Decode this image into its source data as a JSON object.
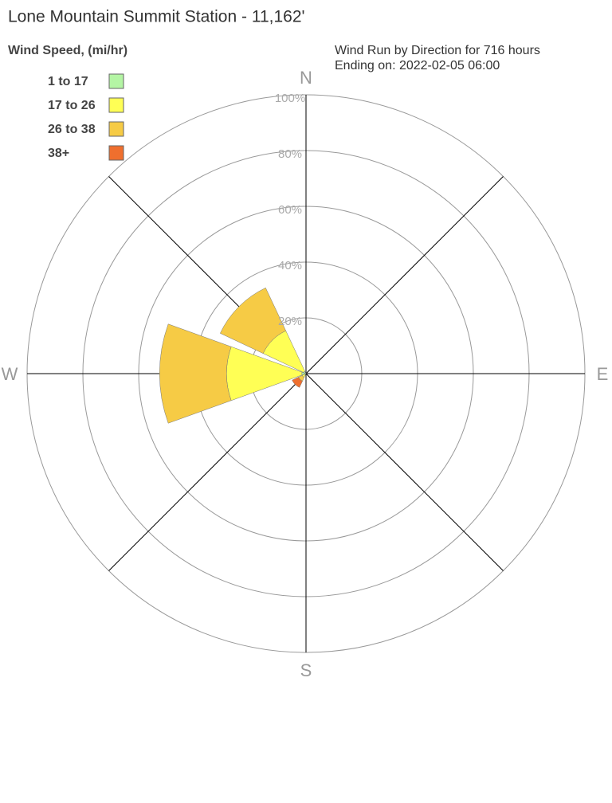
{
  "chart_data": {
    "type": "windrose",
    "title": "Lone Mountain Summit Station - 11,162'",
    "legend_title": "Wind Speed, (mi/hr)",
    "subtitle": [
      "Wind Run by Direction for 716 hours",
      "Ending on: 2022-02-05 06:00"
    ],
    "categories": [
      "N",
      null,
      "E",
      null,
      "S",
      null,
      "W",
      null
    ],
    "series": [
      {
        "name": "1 to 17",
        "color": "#b4f5a4",
        "values": [
          0.3,
          0,
          0,
          0,
          0,
          0.5,
          1.5,
          1
        ]
      },
      {
        "name": "17 to 26",
        "color": "#ffff55",
        "values": [
          0,
          0,
          0,
          0,
          0,
          1,
          27,
          16
        ]
      },
      {
        "name": "26 to 38",
        "color": "#f6cb45",
        "values": [
          0,
          0,
          0,
          0,
          0,
          1.5,
          24,
          17
        ]
      },
      {
        "name": "38+",
        "color": "#ef6f2e",
        "values": [
          0,
          0,
          0,
          0,
          0,
          2.5,
          0,
          0
        ]
      }
    ],
    "rlim": [
      0,
      100
    ],
    "rticks": [
      {
        "value": 20,
        "label": "20%"
      },
      {
        "value": 40,
        "label": "40%"
      },
      {
        "value": 60,
        "label": "60%"
      },
      {
        "value": 80,
        "label": "80%"
      },
      {
        "value": 100,
        "label": "100%"
      }
    ],
    "grid": true,
    "legend": "top-left"
  }
}
